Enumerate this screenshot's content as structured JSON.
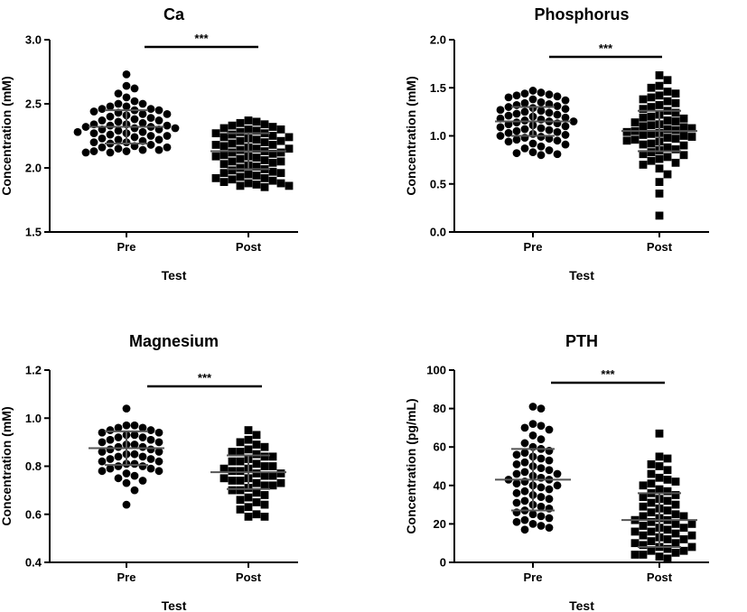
{
  "chart_data": [
    {
      "type": "scatter",
      "title": "Ca",
      "xlabel": "Test",
      "ylabel": "Concentration (mM)",
      "ylim": [
        1.5,
        3.0
      ],
      "yticks": [
        "1.5",
        "2.0",
        "2.5",
        "3.0"
      ],
      "categories": [
        "Pre",
        "Post"
      ],
      "significance": "***",
      "series": [
        {
          "marker": "circle",
          "mean": 2.32,
          "sd": 0.13,
          "values": [
            2.73,
            2.64,
            2.62,
            2.58,
            2.55,
            2.52,
            2.5,
            2.5,
            2.48,
            2.48,
            2.46,
            2.46,
            2.45,
            2.45,
            2.44,
            2.43,
            2.42,
            2.42,
            2.41,
            2.4,
            2.39,
            2.38,
            2.37,
            2.37,
            2.36,
            2.35,
            2.34,
            2.34,
            2.33,
            2.33,
            2.32,
            2.32,
            2.31,
            2.31,
            2.3,
            2.3,
            2.29,
            2.28,
            2.28,
            2.27,
            2.27,
            2.26,
            2.25,
            2.25,
            2.24,
            2.23,
            2.22,
            2.22,
            2.21,
            2.2,
            2.2,
            2.19,
            2.18,
            2.17,
            2.16,
            2.16,
            2.15,
            2.14,
            2.14,
            2.13,
            2.13,
            2.12,
            2.12
          ]
        },
        {
          "marker": "square",
          "mean": 2.13,
          "sd": 0.14,
          "values": [
            2.37,
            2.36,
            2.35,
            2.34,
            2.33,
            2.32,
            2.31,
            2.3,
            2.3,
            2.29,
            2.28,
            2.27,
            2.27,
            2.26,
            2.25,
            2.24,
            2.24,
            2.23,
            2.22,
            2.21,
            2.21,
            2.2,
            2.19,
            2.18,
            2.18,
            2.17,
            2.16,
            2.15,
            2.15,
            2.14,
            2.13,
            2.12,
            2.12,
            2.11,
            2.1,
            2.09,
            2.09,
            2.08,
            2.07,
            2.06,
            2.05,
            2.05,
            2.04,
            2.03,
            2.02,
            2.01,
            2.0,
            1.99,
            1.98,
            1.97,
            1.96,
            1.96,
            1.95,
            1.94,
            1.93,
            1.92,
            1.92,
            1.91,
            1.9,
            1.89,
            1.88,
            1.88,
            1.87,
            1.86,
            1.86,
            1.85
          ]
        }
      ]
    },
    {
      "type": "scatter",
      "title": "Phosphorus",
      "xlabel": "Test",
      "ylabel": "Concentration (mM)",
      "ylim": [
        0.0,
        2.0
      ],
      "yticks": [
        "0.0",
        "0.5",
        "1.0",
        "1.5",
        "2.0"
      ],
      "categories": [
        "Pre",
        "Post"
      ],
      "significance": "***",
      "series": [
        {
          "marker": "circle",
          "mean": 1.15,
          "sd": 0.15,
          "values": [
            1.47,
            1.45,
            1.44,
            1.43,
            1.42,
            1.41,
            1.4,
            1.38,
            1.37,
            1.35,
            1.34,
            1.33,
            1.32,
            1.31,
            1.3,
            1.29,
            1.28,
            1.27,
            1.26,
            1.25,
            1.24,
            1.23,
            1.22,
            1.21,
            1.2,
            1.19,
            1.18,
            1.17,
            1.16,
            1.15,
            1.15,
            1.14,
            1.13,
            1.12,
            1.11,
            1.1,
            1.09,
            1.08,
            1.07,
            1.06,
            1.05,
            1.04,
            1.03,
            1.02,
            1.01,
            1.0,
            0.99,
            0.98,
            0.97,
            0.96,
            0.95,
            0.94,
            0.92,
            0.91,
            0.89,
            0.87,
            0.85,
            0.83,
            0.82,
            0.81,
            0.8
          ]
        },
        {
          "marker": "square",
          "mean": 1.05,
          "sd": 0.21,
          "values": [
            1.63,
            1.58,
            1.52,
            1.5,
            1.46,
            1.44,
            1.42,
            1.4,
            1.38,
            1.36,
            1.34,
            1.32,
            1.3,
            1.28,
            1.26,
            1.24,
            1.22,
            1.2,
            1.19,
            1.18,
            1.16,
            1.15,
            1.14,
            1.12,
            1.11,
            1.1,
            1.09,
            1.08,
            1.07,
            1.06,
            1.05,
            1.04,
            1.03,
            1.02,
            1.01,
            1.0,
            0.99,
            0.98,
            0.97,
            0.96,
            0.95,
            0.94,
            0.92,
            0.91,
            0.9,
            0.88,
            0.86,
            0.85,
            0.83,
            0.81,
            0.8,
            0.78,
            0.76,
            0.74,
            0.72,
            0.7,
            0.66,
            0.6,
            0.52,
            0.4,
            0.17
          ]
        }
      ]
    },
    {
      "type": "scatter",
      "title": "Magnesium",
      "xlabel": "Test",
      "ylabel": "Concentration (mM)",
      "ylim": [
        0.4,
        1.2
      ],
      "yticks": [
        "0.4",
        "0.6",
        "0.8",
        "1.0",
        "1.2"
      ],
      "categories": [
        "Pre",
        "Post"
      ],
      "significance": "***",
      "series": [
        {
          "marker": "circle",
          "mean": 0.875,
          "sd": 0.07,
          "values": [
            1.04,
            0.97,
            0.97,
            0.96,
            0.96,
            0.95,
            0.95,
            0.94,
            0.94,
            0.93,
            0.93,
            0.92,
            0.92,
            0.91,
            0.91,
            0.9,
            0.9,
            0.89,
            0.89,
            0.88,
            0.88,
            0.87,
            0.87,
            0.86,
            0.86,
            0.85,
            0.85,
            0.84,
            0.84,
            0.83,
            0.83,
            0.82,
            0.82,
            0.81,
            0.81,
            0.8,
            0.8,
            0.79,
            0.79,
            0.78,
            0.78,
            0.77,
            0.76,
            0.75,
            0.74,
            0.73,
            0.7,
            0.64
          ]
        },
        {
          "marker": "square",
          "mean": 0.775,
          "sd": 0.07,
          "values": [
            0.95,
            0.93,
            0.91,
            0.9,
            0.89,
            0.88,
            0.87,
            0.86,
            0.86,
            0.85,
            0.84,
            0.84,
            0.83,
            0.82,
            0.82,
            0.81,
            0.8,
            0.8,
            0.79,
            0.79,
            0.78,
            0.78,
            0.77,
            0.77,
            0.76,
            0.76,
            0.75,
            0.75,
            0.74,
            0.74,
            0.73,
            0.73,
            0.72,
            0.72,
            0.71,
            0.7,
            0.7,
            0.69,
            0.68,
            0.67,
            0.66,
            0.65,
            0.64,
            0.63,
            0.62,
            0.6,
            0.59,
            0.59
          ]
        }
      ]
    },
    {
      "type": "scatter",
      "title": "PTH",
      "xlabel": "Test",
      "ylabel": "Concentration (pg/mL)",
      "ylim": [
        0,
        100
      ],
      "yticks": [
        "0",
        "20",
        "40",
        "60",
        "80",
        "100"
      ],
      "categories": [
        "Pre",
        "Post"
      ],
      "significance": "***",
      "series": [
        {
          "marker": "circle",
          "mean": 43,
          "sd": 16,
          "values": [
            81,
            80,
            72,
            71,
            70,
            69,
            66,
            64,
            62,
            60,
            59,
            58,
            57,
            56,
            55,
            54,
            53,
            52,
            51,
            50,
            49,
            48,
            47,
            46,
            46,
            45,
            44,
            43,
            43,
            42,
            41,
            40,
            40,
            39,
            38,
            37,
            36,
            35,
            34,
            33,
            32,
            31,
            30,
            29,
            28,
            27,
            26,
            25,
            24,
            23,
            22,
            21,
            20,
            19,
            18,
            17
          ]
        },
        {
          "marker": "square",
          "mean": 22,
          "sd": 14,
          "values": [
            67,
            55,
            54,
            51,
            50,
            48,
            46,
            44,
            43,
            42,
            41,
            40,
            38,
            37,
            36,
            35,
            34,
            33,
            32,
            31,
            30,
            29,
            28,
            27,
            26,
            25,
            24,
            24,
            23,
            22,
            22,
            21,
            20,
            20,
            19,
            18,
            18,
            17,
            16,
            16,
            15,
            14,
            14,
            13,
            12,
            12,
            11,
            10,
            10,
            9,
            8,
            8,
            7,
            6,
            6,
            5,
            4,
            4,
            3,
            2
          ]
        }
      ]
    }
  ]
}
